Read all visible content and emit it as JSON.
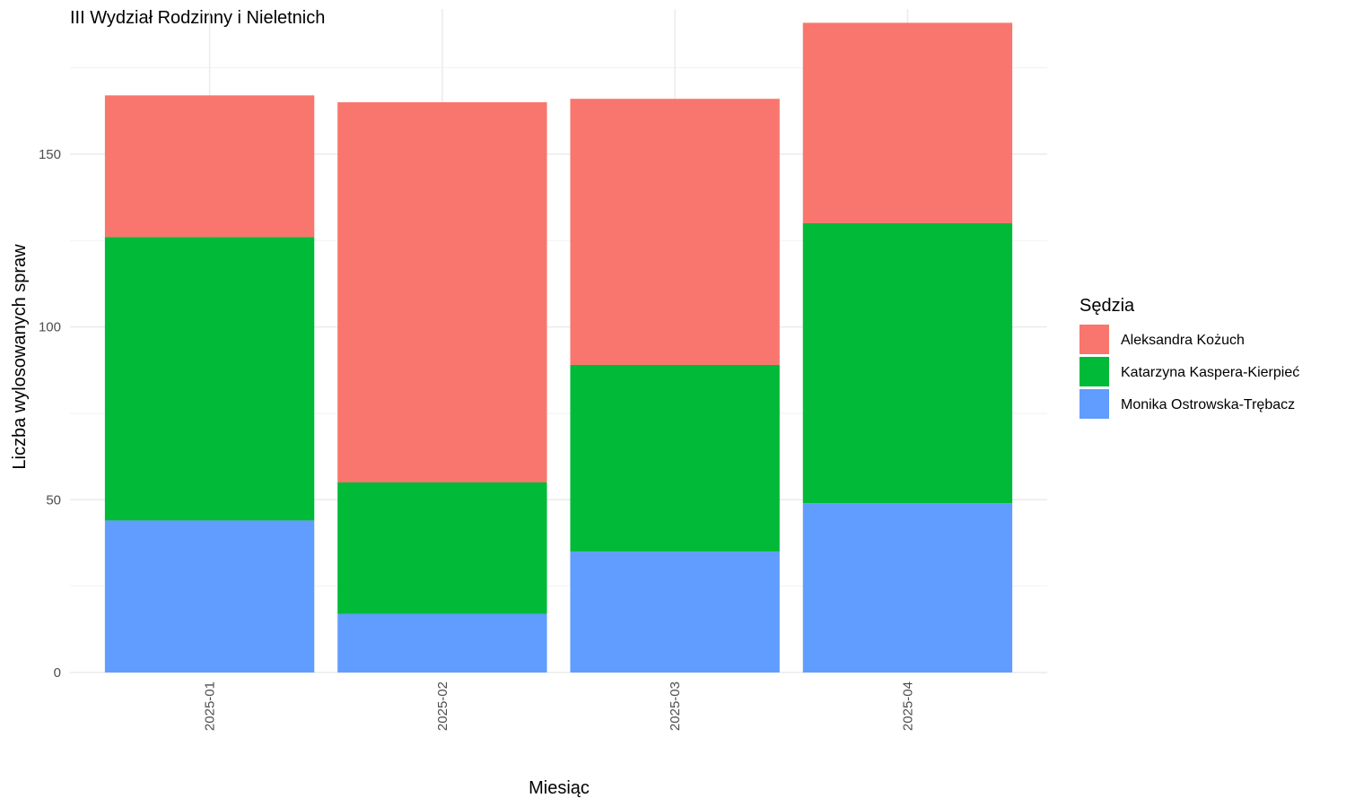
{
  "chart_data": {
    "type": "bar",
    "stacked": true,
    "title": "III Wydział Rodzinny i Nieletnich",
    "xlabel": "Miesiąc",
    "ylabel": "Liczba wylosowanych spraw",
    "categories": [
      "2025-01",
      "2025-02",
      "2025-03",
      "2025-04"
    ],
    "ylim": [
      0,
      192
    ],
    "yticks": [
      0,
      50,
      100,
      150
    ],
    "grid": true,
    "legend": {
      "title": "Sędzia",
      "position": "right"
    },
    "series": [
      {
        "name": "Monika Ostrowska-Trębacz",
        "color": "#619CFF",
        "values": [
          44,
          17,
          35,
          49
        ]
      },
      {
        "name": "Katarzyna Kaspera-Kierpieć",
        "color": "#00BA38",
        "values": [
          82,
          38,
          54,
          81
        ]
      },
      {
        "name": "Aleksandra Kożuch",
        "color": "#F8766D",
        "values": [
          41,
          110,
          77,
          58
        ]
      }
    ],
    "legend_order": [
      "Aleksandra Kożuch",
      "Katarzyna Kaspera-Kierpieć",
      "Monika Ostrowska-Trębacz"
    ]
  }
}
